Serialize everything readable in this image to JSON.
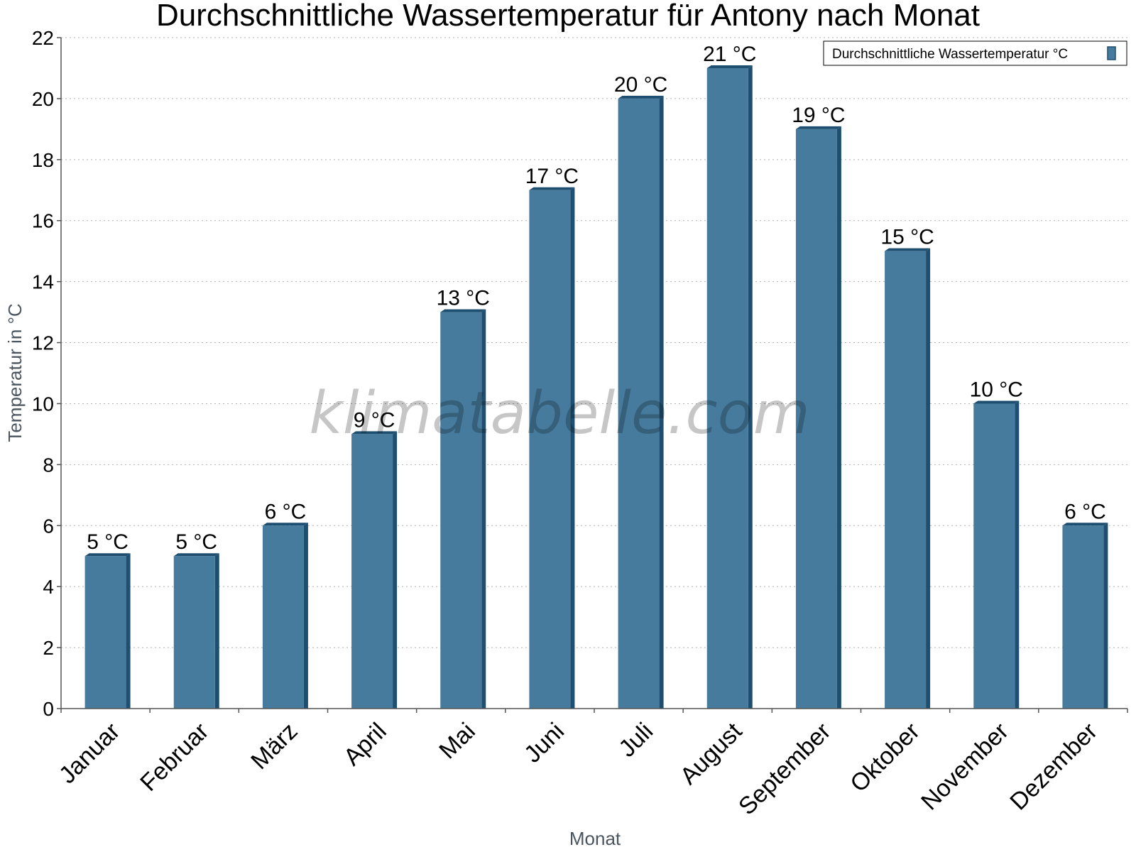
{
  "colors": {
    "bar": "#467b9d",
    "bar_side": "#1e4f70",
    "bar_top": "#1e4f70",
    "grid": "#b0b0b0",
    "axis": "#555555"
  },
  "watermark": "klimatabelle.com",
  "chart_data": {
    "type": "bar",
    "title": "Durchschnittliche Wassertemperatur für Antony nach Monat",
    "xlabel": "Monat",
    "ylabel": "Temperatur in °C",
    "ylim": [
      0,
      22
    ],
    "yticks": [
      0,
      2,
      4,
      6,
      8,
      10,
      12,
      14,
      16,
      18,
      20,
      22
    ],
    "grid": true,
    "legend_position": "top-right",
    "categories": [
      "Januar",
      "Februar",
      "März",
      "April",
      "Mai",
      "Juni",
      "Juli",
      "August",
      "September",
      "Oktober",
      "November",
      "Dezember"
    ],
    "series": [
      {
        "name": "Durchschnittliche Wassertemperatur °C",
        "values": [
          5,
          5,
          6,
          9,
          13,
          17,
          20,
          21,
          19,
          15,
          10,
          6
        ],
        "labels": [
          "5 °C",
          "5 °C",
          "6 °C",
          "9 °C",
          "13 °C",
          "17 °C",
          "20 °C",
          "21 °C",
          "19 °C",
          "15 °C",
          "10 °C",
          "6 °C"
        ]
      }
    ]
  }
}
